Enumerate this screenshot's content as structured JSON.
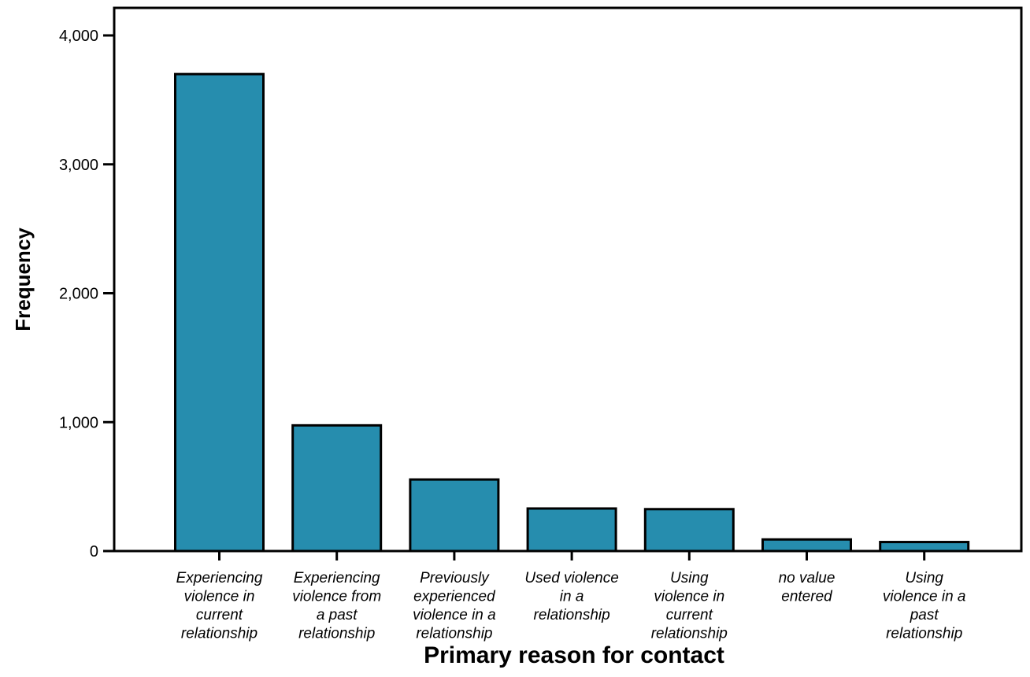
{
  "chart_data": {
    "type": "bar",
    "categories": [
      [
        "Experiencing",
        "violence in",
        "current",
        "relationship"
      ],
      [
        "Experiencing",
        "violence from",
        "a past",
        "relationship"
      ],
      [
        "Previously",
        "experienced",
        "violence in a",
        "relationship"
      ],
      [
        "Used violence",
        "in a",
        "relationship"
      ],
      [
        "Using",
        "violence in",
        "current",
        "relationship"
      ],
      [
        "no value",
        "entered"
      ],
      [
        "Using",
        "violence in a",
        "past",
        "relationship"
      ]
    ],
    "values": [
      3700,
      975,
      555,
      330,
      325,
      90,
      70
    ],
    "xlabel": "Primary reason for contact",
    "ylabel": "Frequency",
    "ylim": [
      0,
      4000
    ],
    "yticks": [
      0,
      1000,
      2000,
      3000,
      4000
    ],
    "ytick_labels": [
      "0",
      "1,000",
      "2,000",
      "3,000",
      "4,000"
    ],
    "grid": false,
    "colors": {
      "bar": "#268dae",
      "edge": "#000000"
    }
  }
}
